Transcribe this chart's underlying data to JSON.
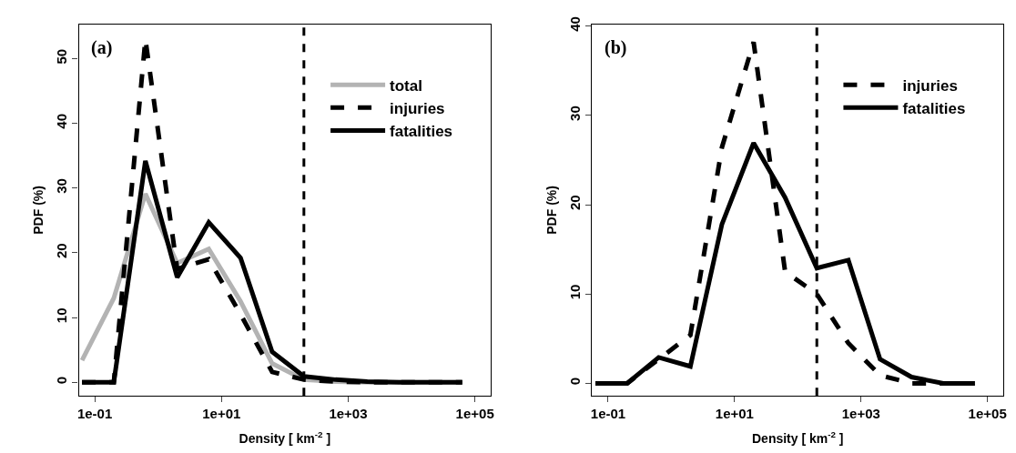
{
  "chart_data": [
    {
      "type": "line",
      "xlabel": "Density [ km$^{-2}$ ]",
      "ylabel": "PDF (%)",
      "log": "x",
      "legend": "top right",
      "annotations": [
        "(a)"
      ],
      "x": [
        0.063,
        0.2,
        0.63,
        2,
        6.3,
        20,
        63,
        200,
        630,
        2000,
        6300,
        20000,
        63000
      ],
      "xlim": [
        0.056,
        178000
      ],
      "xticks": [
        {
          "value": 0.1,
          "label": "1e-01"
        },
        {
          "value": 10,
          "label": "1e+01"
        },
        {
          "value": 1000,
          "label": "1e+03"
        },
        {
          "value": 100000,
          "label": "1e+05"
        }
      ],
      "ylim": [
        -2.1,
        55.3
      ],
      "yticks": [
        0,
        10,
        20,
        30,
        40,
        50
      ],
      "ref_lines": [
        {
          "axis": "x",
          "value": 200,
          "color": "#000000",
          "line_style": "dashed"
        }
      ],
      "series": [
        {
          "name": "total",
          "color": "#b3b3b3",
          "line_style": "solid",
          "values": [
            3.4,
            13,
            29.1,
            18.4,
            20.6,
            12.5,
            2.9,
            0.4,
            0.1,
            0,
            0,
            0,
            0
          ]
        },
        {
          "name": "injuries",
          "color": "#000000",
          "line_style": "dashed",
          "values": [
            0,
            0,
            53,
            17.5,
            19,
            10.5,
            1.6,
            0.4,
            0.1,
            0,
            0,
            0,
            0
          ]
        },
        {
          "name": "fatalities",
          "color": "#000000",
          "line_style": "solid",
          "values": [
            0,
            0,
            34.2,
            16.2,
            24.7,
            19.2,
            4.7,
            0.9,
            0.4,
            0.1,
            0,
            0,
            0
          ]
        }
      ]
    },
    {
      "type": "line",
      "xlabel": "Density [ km$^{-2}$ ]",
      "ylabel": "PDF (%)",
      "log": "x",
      "legend": "top right",
      "annotations": [
        "(b)"
      ],
      "x": [
        0.063,
        0.2,
        0.63,
        2,
        6.3,
        20,
        63,
        200,
        630,
        2000,
        6300,
        20000,
        63000
      ],
      "xlim": [
        0.056,
        178000
      ],
      "xticks": [
        {
          "value": 0.1,
          "label": "1e-01"
        },
        {
          "value": 10,
          "label": "1e+01"
        },
        {
          "value": 1000,
          "label": "1e+03"
        },
        {
          "value": 100000,
          "label": "1e+05"
        }
      ],
      "ylim": [
        -1.4,
        40.2
      ],
      "yticks": [
        0,
        10,
        20,
        30,
        40
      ],
      "ref_lines": [
        {
          "axis": "x",
          "value": 200,
          "color": "#000000",
          "line_style": "dashed"
        }
      ],
      "series": [
        {
          "name": "injuries",
          "color": "#000000",
          "line_style": "dashed",
          "values": [
            0,
            0,
            2.7,
            5.4,
            26.4,
            38.2,
            12.5,
            10,
            4.5,
            0.9,
            0,
            0,
            0
          ]
        },
        {
          "name": "fatalities",
          "color": "#000000",
          "line_style": "solid",
          "values": [
            0,
            0,
            2.9,
            1.9,
            17.8,
            26.9,
            20.8,
            12.9,
            13.8,
            2.7,
            0.7,
            0,
            0
          ]
        }
      ]
    }
  ]
}
